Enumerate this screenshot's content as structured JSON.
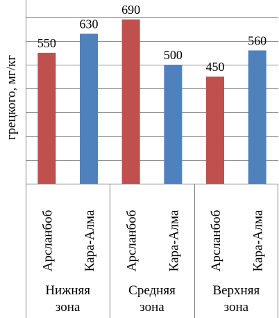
{
  "chart_data": {
    "type": "bar",
    "ylabel": "грецкого, мг/кг",
    "ylim": [
      0,
      700
    ],
    "grid": true,
    "groups": [
      {
        "label_lines": [
          "Нижняя",
          "зона"
        ],
        "bars": [
          {
            "category": "Арсланбоб",
            "value": 550,
            "label": "550",
            "color": "#c0504d"
          },
          {
            "category": "Кара-Алма",
            "value": 630,
            "label": "630",
            "color": "#4f81bd"
          }
        ]
      },
      {
        "label_lines": [
          "Средняя",
          "зона"
        ],
        "bars": [
          {
            "category": "Арсланбоб",
            "value": 690,
            "label": "690",
            "color": "#c0504d"
          },
          {
            "category": "Кара-Алма",
            "value": 500,
            "label": "500",
            "color": "#4f81bd"
          }
        ]
      },
      {
        "label_lines": [
          "Верхняя",
          "зона"
        ],
        "bars": [
          {
            "category": "Арсланбоб",
            "value": 450,
            "label": "450",
            "color": "#c0504d"
          },
          {
            "category": "Кара-Алма",
            "value": 560,
            "label": "560",
            "color": "#4f81bd"
          }
        ]
      }
    ]
  }
}
